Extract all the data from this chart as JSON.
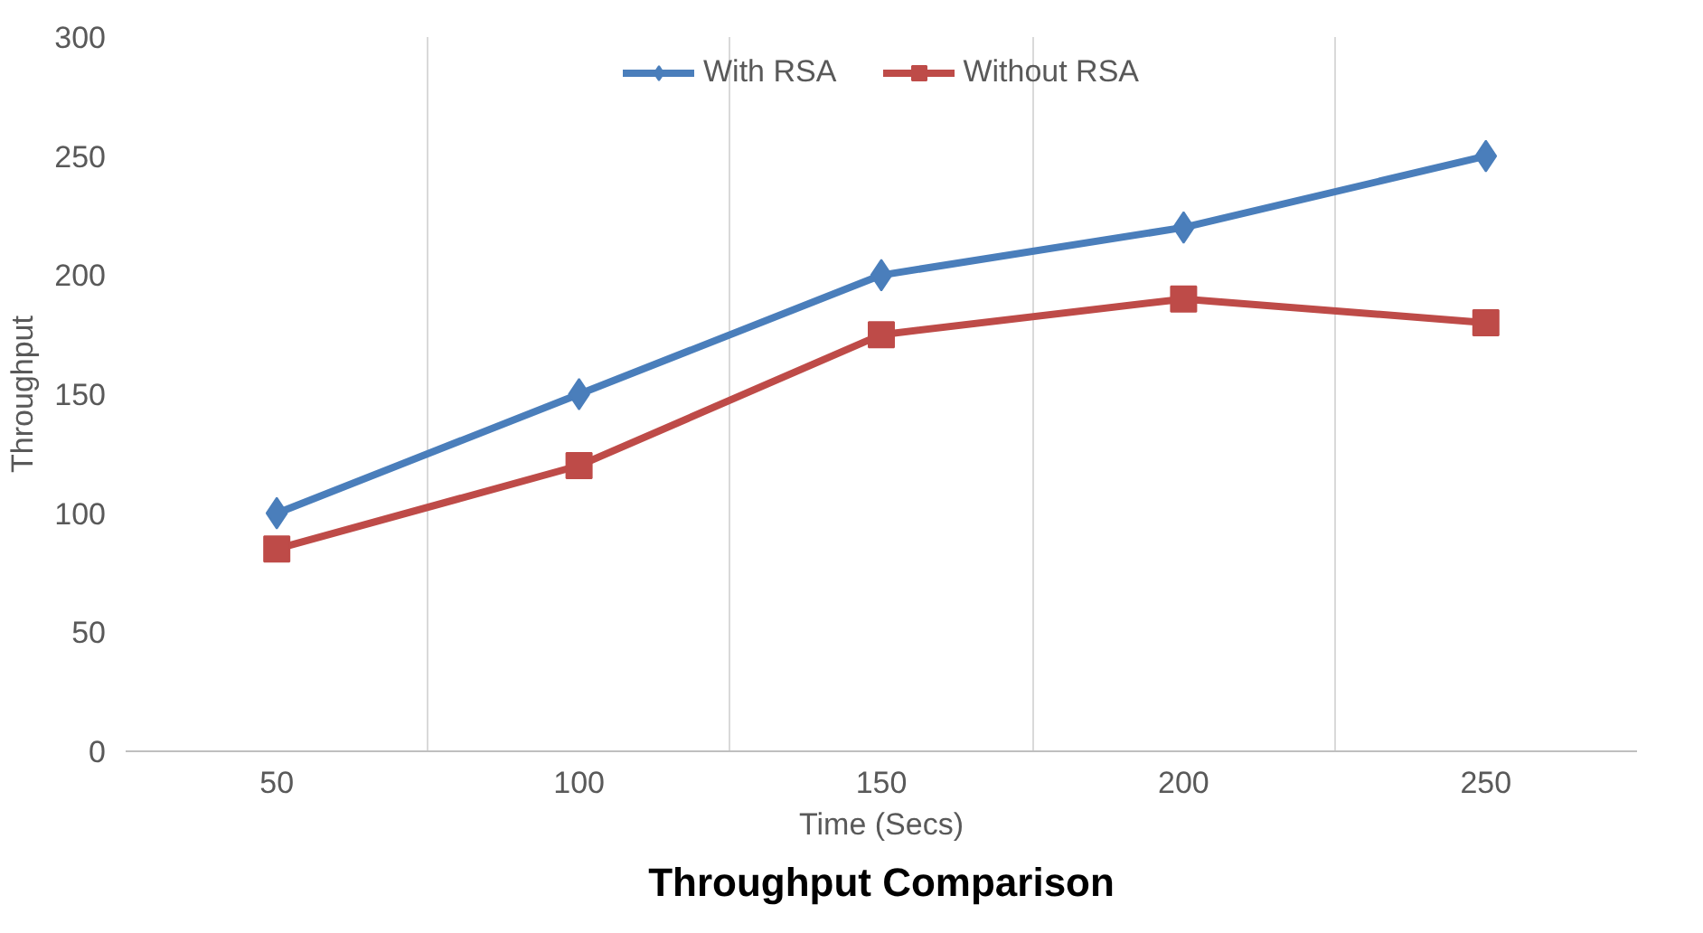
{
  "chart_data": {
    "type": "line",
    "title": "Throughput Comparison",
    "xlabel": "Time (Secs)",
    "ylabel": "Throughput",
    "categories": [
      "50",
      "100",
      "150",
      "200",
      "250"
    ],
    "series": [
      {
        "name": "With RSA",
        "color": "#4a7ebb",
        "marker": "diamond",
        "values": [
          100,
          150,
          200,
          220,
          250
        ]
      },
      {
        "name": "Without RSA",
        "color": "#be4b48",
        "marker": "square",
        "values": [
          85,
          120,
          175,
          190,
          180
        ]
      }
    ],
    "ylim": [
      0,
      300
    ],
    "yticks": [
      0,
      50,
      100,
      150,
      200,
      250,
      300
    ],
    "grid": "x",
    "legend": "top",
    "line_style": "solid"
  }
}
